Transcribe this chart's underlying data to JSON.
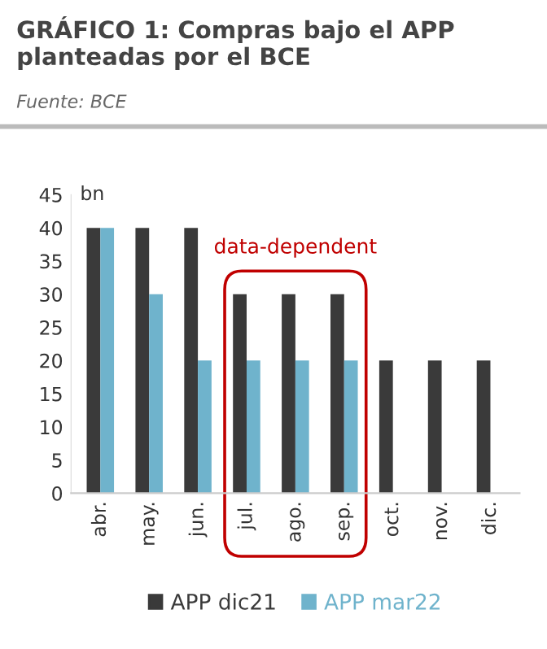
{
  "chart_data": {
    "type": "bar",
    "title": "GRÁFICO 1: Compras bajo el APP planteadas por el BCE",
    "subtitle": "Fuente: BCE",
    "ylabel": "bn",
    "categories": [
      "abr.",
      "may.",
      "jun.",
      "jul.",
      "ago.",
      "sep.",
      "oct.",
      "nov.",
      "dic."
    ],
    "series": [
      {
        "name": "APP dic21",
        "color": "#3a3a3a",
        "values": [
          40,
          40,
          40,
          30,
          30,
          30,
          20,
          20,
          20
        ]
      },
      {
        "name": "APP mar22",
        "color": "#6fb3cc",
        "values": [
          40,
          30,
          20,
          20,
          20,
          20,
          null,
          null,
          null
        ]
      }
    ],
    "ylim": [
      0,
      45
    ],
    "yticks": [
      0,
      5,
      10,
      15,
      20,
      25,
      30,
      35,
      40,
      45
    ],
    "annotations": [
      "data-dependent"
    ],
    "grid": false,
    "legend": "bottom"
  }
}
